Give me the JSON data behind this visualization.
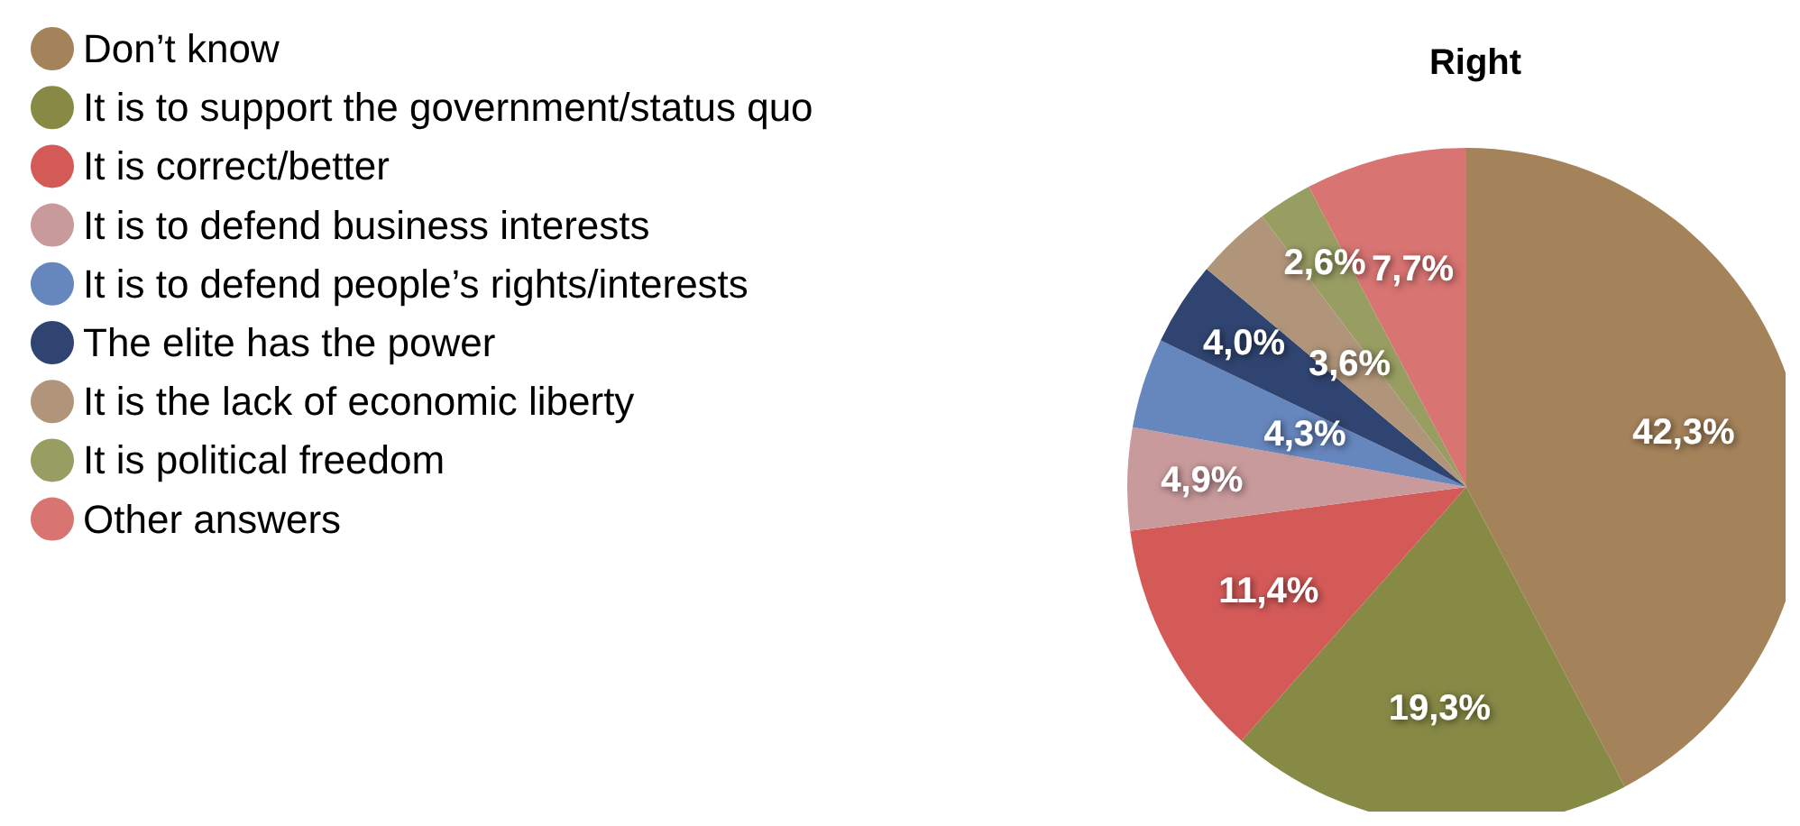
{
  "chart_data": {
    "type": "pie",
    "title": "Right",
    "categories": [
      "Don’t know",
      "It is to support the government/status quo",
      "It is correct/better",
      "It is to defend business interests",
      "It is to defend people’s rights/interests",
      "The elite has the power",
      "It is the lack of economic liberty",
      "It is political freedom",
      "Other answers"
    ],
    "values": [
      42.3,
      19.3,
      11.4,
      4.9,
      4.3,
      4.0,
      3.6,
      2.6,
      7.7
    ],
    "value_labels": [
      "42,3%",
      "19,3%",
      "11,4%",
      "4,9%",
      "4,3%",
      "4,0%",
      "3,6%",
      "2,6%",
      "7,7%"
    ],
    "colors": [
      "#a5835a",
      "#878a45",
      "#d45a58",
      "#c99a9c",
      "#6686be",
      "#2f4470",
      "#b0957a",
      "#989e62",
      "#d87472"
    ],
    "legend": "top left"
  }
}
